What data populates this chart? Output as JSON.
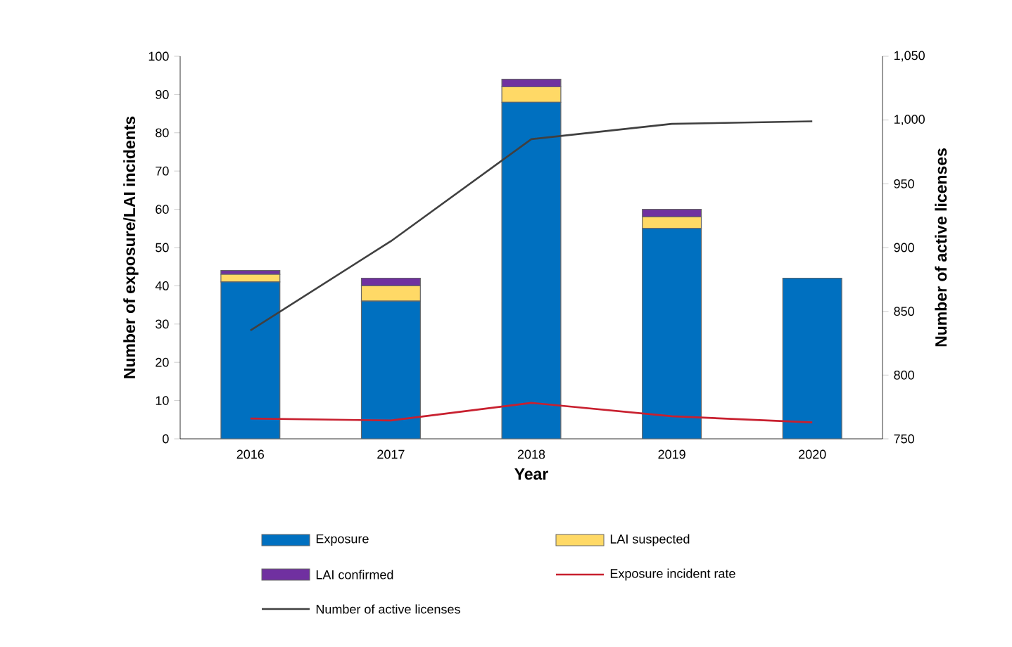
{
  "chart_data": {
    "type": "bar",
    "stacked": true,
    "categories": [
      "2016",
      "2017",
      "2018",
      "2019",
      "2020"
    ],
    "xlabel": "Year",
    "ylabel": "Number of exposure/LAI incidents",
    "y2label": "Number of active licenses",
    "ylim": [
      0,
      100
    ],
    "yticks": [
      0,
      10,
      20,
      30,
      40,
      50,
      60,
      70,
      80,
      90,
      100
    ],
    "y2lim": [
      750,
      1050
    ],
    "y2ticks": [
      750,
      800,
      850,
      900,
      950,
      {
        "value": 1000,
        "label": "1,000"
      },
      {
        "value": 1050,
        "label": "1,050"
      }
    ],
    "legend": "bottom",
    "series": [
      {
        "name": "Exposure",
        "color": "#0070c0",
        "values": [
          41,
          36,
          88,
          55,
          42
        ]
      },
      {
        "name": "LAI suspected",
        "color": "#ffd966",
        "values": [
          2,
          4,
          4,
          3,
          0
        ]
      },
      {
        "name": "LAI confirmed",
        "color": "#7030a0",
        "values": [
          1,
          2,
          2,
          2,
          0
        ]
      },
      {
        "name": "Exposure incident rate",
        "type": "line",
        "color": "#c8202f",
        "values": [
          5.3,
          4.8,
          9.4,
          5.9,
          4.3
        ]
      },
      {
        "name": "Number of active licenses",
        "type": "line",
        "axis": "y2",
        "color": "#404040",
        "values": [
          835,
          905,
          985,
          997,
          999
        ]
      }
    ]
  }
}
